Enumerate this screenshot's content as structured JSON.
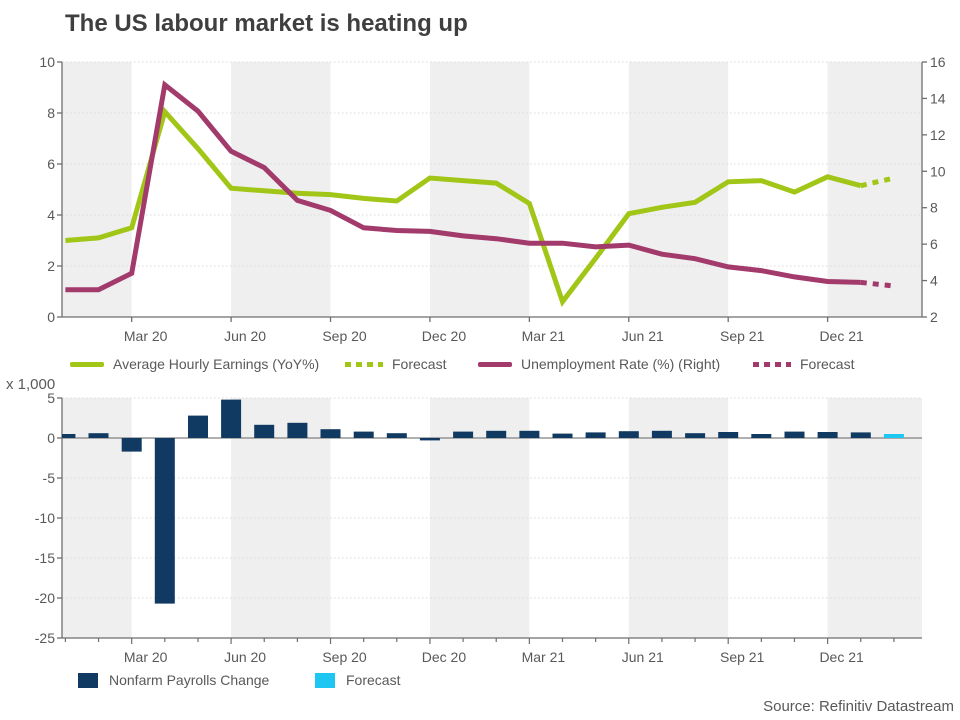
{
  "title": "The US labour market is heating up",
  "source": "Source: Refinitiv Datastream",
  "colors": {
    "green": "#a1c617",
    "magenta": "#a23a6b",
    "navy": "#103a61",
    "cyan": "#1ec6f2",
    "stripe": "#efefef",
    "grid": "#d9d9d9",
    "axis": "#6e6e6e",
    "zero_line": "#808080",
    "tick_text": "#595959",
    "title_text": "#3f3f3f"
  },
  "chart_data": [
    {
      "type": "line",
      "title": "The US labour market is heating up",
      "x": [
        "Jan 20",
        "Feb 20",
        "Mar 20",
        "Apr 20",
        "May 20",
        "Jun 20",
        "Jul 20",
        "Aug 20",
        "Sep 20",
        "Oct 20",
        "Nov 20",
        "Dec 20",
        "Jan 21",
        "Feb 21",
        "Mar 21",
        "Apr 21",
        "May 21",
        "Jun 21",
        "Jul 21",
        "Aug 21",
        "Sep 21",
        "Oct 21",
        "Nov 21",
        "Dec 21",
        "Jan 22",
        "Feb 22"
      ],
      "x_tick_labels": [
        "Mar 20",
        "Jun 20",
        "Sep 20",
        "Dec 20",
        "Mar 21",
        "Jun 21",
        "Sep 21",
        "Dec 21"
      ],
      "left_axis": {
        "min": 0,
        "max": 10,
        "ticks": [
          0,
          2,
          4,
          6,
          8,
          10
        ]
      },
      "right_axis": {
        "min": 2,
        "max": 16,
        "ticks": [
          2,
          4,
          6,
          8,
          10,
          12,
          14,
          16
        ]
      },
      "grid": true,
      "legend_position": "bottom",
      "series": [
        {
          "name": "Average Hourly Earnings (YoY%)",
          "forecast_label": "Forecast",
          "axis": "left",
          "color_key": "green",
          "forecast_points": 1,
          "values": [
            3.0,
            3.1,
            3.5,
            8.05,
            6.6,
            5.05,
            4.95,
            4.85,
            4.8,
            4.65,
            4.55,
            5.45,
            5.35,
            5.25,
            4.45,
            0.6,
            2.3,
            4.05,
            4.3,
            4.5,
            5.3,
            5.35,
            4.9,
            5.5,
            5.15,
            5.45
          ]
        },
        {
          "name": "Unemployment Rate (%) (Right)",
          "forecast_label": "Forecast",
          "axis": "right",
          "color_key": "magenta",
          "forecast_points": 1,
          "values": [
            3.5,
            3.5,
            4.4,
            14.75,
            13.3,
            11.1,
            10.2,
            8.4,
            7.85,
            6.9,
            6.75,
            6.7,
            6.45,
            6.3,
            6.05,
            6.05,
            5.85,
            5.95,
            5.45,
            5.2,
            4.75,
            4.55,
            4.2,
            3.95,
            3.9,
            3.7
          ]
        }
      ]
    },
    {
      "type": "bar",
      "unit_label": "x 1,000",
      "x": [
        "Jan 20",
        "Feb 20",
        "Mar 20",
        "Apr 20",
        "May 20",
        "Jun 20",
        "Jul 20",
        "Aug 20",
        "Sep 20",
        "Oct 20",
        "Nov 20",
        "Dec 20",
        "Jan 21",
        "Feb 21",
        "Mar 21",
        "Apr 21",
        "May 21",
        "Jun 21",
        "Jul 21",
        "Aug 21",
        "Sep 21",
        "Oct 21",
        "Nov 21",
        "Dec 21",
        "Jan 22",
        "Feb 22"
      ],
      "x_tick_labels": [
        "Mar 20",
        "Jun 20",
        "Sep 20",
        "Dec 20",
        "Mar 21",
        "Jun 21",
        "Sep 21",
        "Dec 21"
      ],
      "y_axis": {
        "min": -25,
        "max": 5,
        "ticks": [
          5,
          0,
          -5,
          -10,
          -15,
          -20,
          -25
        ]
      },
      "grid": true,
      "legend_position": "bottom",
      "series": [
        {
          "name": "Nonfarm Payrolls Change",
          "forecast_label": "Forecast",
          "color_key": "navy",
          "forecast_color_key": "cyan",
          "forecast_points": 1,
          "values": [
            0.5,
            0.6,
            -1.7,
            -20.7,
            2.8,
            4.8,
            1.65,
            1.9,
            1.1,
            0.8,
            0.6,
            -0.3,
            0.8,
            0.9,
            0.9,
            0.55,
            0.7,
            0.85,
            0.9,
            0.6,
            0.75,
            0.5,
            0.8,
            0.75,
            0.7,
            0.5
          ]
        }
      ]
    }
  ]
}
